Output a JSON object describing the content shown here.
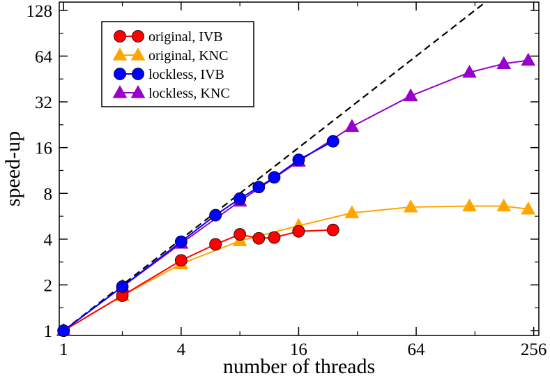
{
  "chart_data": {
    "type": "line",
    "xscale": "log2",
    "yscale": "log2",
    "xlabel": "number of threads",
    "ylabel": "speed-up",
    "xlim": [
      0.95,
      272
    ],
    "ylim": [
      0.93,
      145
    ],
    "xticks": [
      1,
      4,
      16,
      64,
      256
    ],
    "yticks": [
      1,
      2,
      4,
      8,
      16,
      32,
      64,
      128
    ],
    "legend_position": "top-left",
    "ideal_line": {
      "label": "ideal",
      "style": "dashed",
      "color": "#000000"
    },
    "series": [
      {
        "name": "original, IVB",
        "color": "#ff0000",
        "marker": "circle",
        "x": [
          1,
          2,
          4,
          6,
          8,
          10,
          12,
          16,
          24
        ],
        "y": [
          1,
          1.7,
          2.9,
          3.7,
          4.3,
          4.05,
          4.1,
          4.5,
          4.6
        ]
      },
      {
        "name": "original, KNC",
        "color": "#ffa500",
        "marker": "triangle",
        "x": [
          1,
          2,
          4,
          8,
          16,
          30,
          60,
          120,
          180,
          240
        ],
        "y": [
          1,
          1.7,
          2.75,
          3.9,
          4.9,
          5.95,
          6.5,
          6.6,
          6.6,
          6.3
        ]
      },
      {
        "name": "lockless, IVB",
        "color": "#0000ff",
        "marker": "circle",
        "x": [
          1,
          2,
          4,
          6,
          8,
          10,
          12,
          16,
          24
        ],
        "y": [
          1,
          1.95,
          3.85,
          5.75,
          7.4,
          8.8,
          10.2,
          13.3,
          17.6
        ]
      },
      {
        "name": "lockless, KNC",
        "color": "#9900cc",
        "marker": "triangle",
        "x": [
          1,
          2,
          4,
          8,
          16,
          30,
          60,
          120,
          180,
          240
        ],
        "y": [
          1,
          1.95,
          3.75,
          7.1,
          13,
          22,
          35,
          50,
          57,
          60
        ]
      }
    ]
  }
}
